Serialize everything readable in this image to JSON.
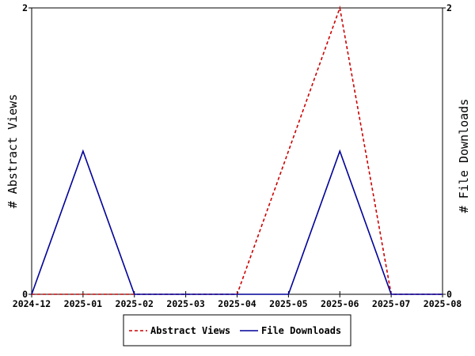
{
  "chart_data": {
    "type": "line",
    "x": [
      "2024-12",
      "2025-01",
      "2025-02",
      "2025-03",
      "2025-04",
      "2025-05",
      "2025-06",
      "2025-07",
      "2025-08"
    ],
    "series": [
      {
        "name": "Abstract Views",
        "axis": "left",
        "color": "#cc0000",
        "dash": "dashed",
        "values": [
          0,
          0,
          0,
          0,
          0,
          1,
          2,
          0,
          0
        ]
      },
      {
        "name": "File Downloads",
        "axis": "right",
        "color": "#000099",
        "dash": "solid",
        "values": [
          0,
          1,
          0,
          0,
          0,
          0,
          1,
          0,
          0
        ]
      }
    ],
    "ylabel_left": "# Abstract Views",
    "ylabel_right": "# File Downloads",
    "ylim": [
      0,
      2
    ],
    "y_ticks": [
      "0",
      "2"
    ],
    "grid": false,
    "legend_position": "bottom-center"
  }
}
